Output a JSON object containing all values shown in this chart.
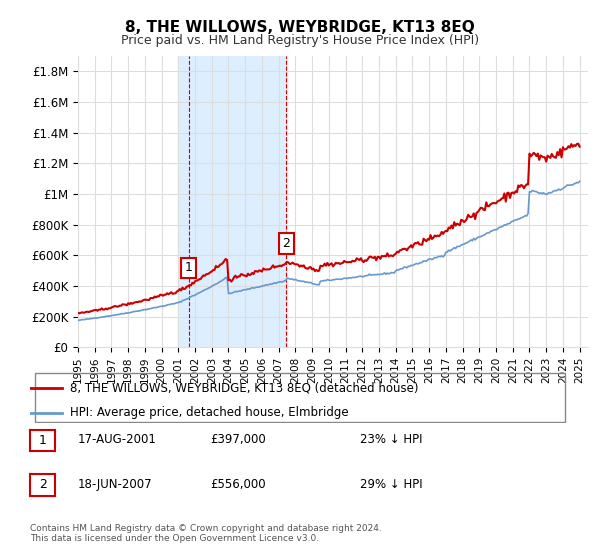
{
  "title": "8, THE WILLOWS, WEYBRIDGE, KT13 8EQ",
  "subtitle": "Price paid vs. HM Land Registry's House Price Index (HPI)",
  "ylabel_ticks": [
    "£0",
    "£200K",
    "£400K",
    "£600K",
    "£800K",
    "£1M",
    "£1.2M",
    "£1.4M",
    "£1.6M",
    "£1.8M"
  ],
  "ytick_values": [
    0,
    200000,
    400000,
    600000,
    800000,
    1000000,
    1200000,
    1400000,
    1600000,
    1800000
  ],
  "ylim": [
    0,
    1900000
  ],
  "xlim_start": 1995.0,
  "xlim_end": 2025.5,
  "sale1_date": 2001.625,
  "sale1_price": 397000,
  "sale1_label": "1",
  "sale2_date": 2007.46,
  "sale2_price": 556000,
  "sale2_label": "2",
  "shade_start": 2001.0,
  "shade_end": 2007.5,
  "red_line_color": "#cc0000",
  "blue_line_color": "#6699cc",
  "shade_color": "#ddeeff",
  "vline_color": "#cc0000",
  "legend_label_red": "8, THE WILLOWS, WEYBRIDGE, KT13 8EQ (detached house)",
  "legend_label_blue": "HPI: Average price, detached house, Elmbridge",
  "table_rows": [
    {
      "num": "1",
      "date": "17-AUG-2001",
      "price": "£397,000",
      "hpi": "23% ↓ HPI"
    },
    {
      "num": "2",
      "date": "18-JUN-2007",
      "price": "£556,000",
      "hpi": "29% ↓ HPI"
    }
  ],
  "footer": "Contains HM Land Registry data © Crown copyright and database right 2024.\nThis data is licensed under the Open Government Licence v3.0.",
  "bg_color": "#ffffff",
  "grid_color": "#dddddd"
}
